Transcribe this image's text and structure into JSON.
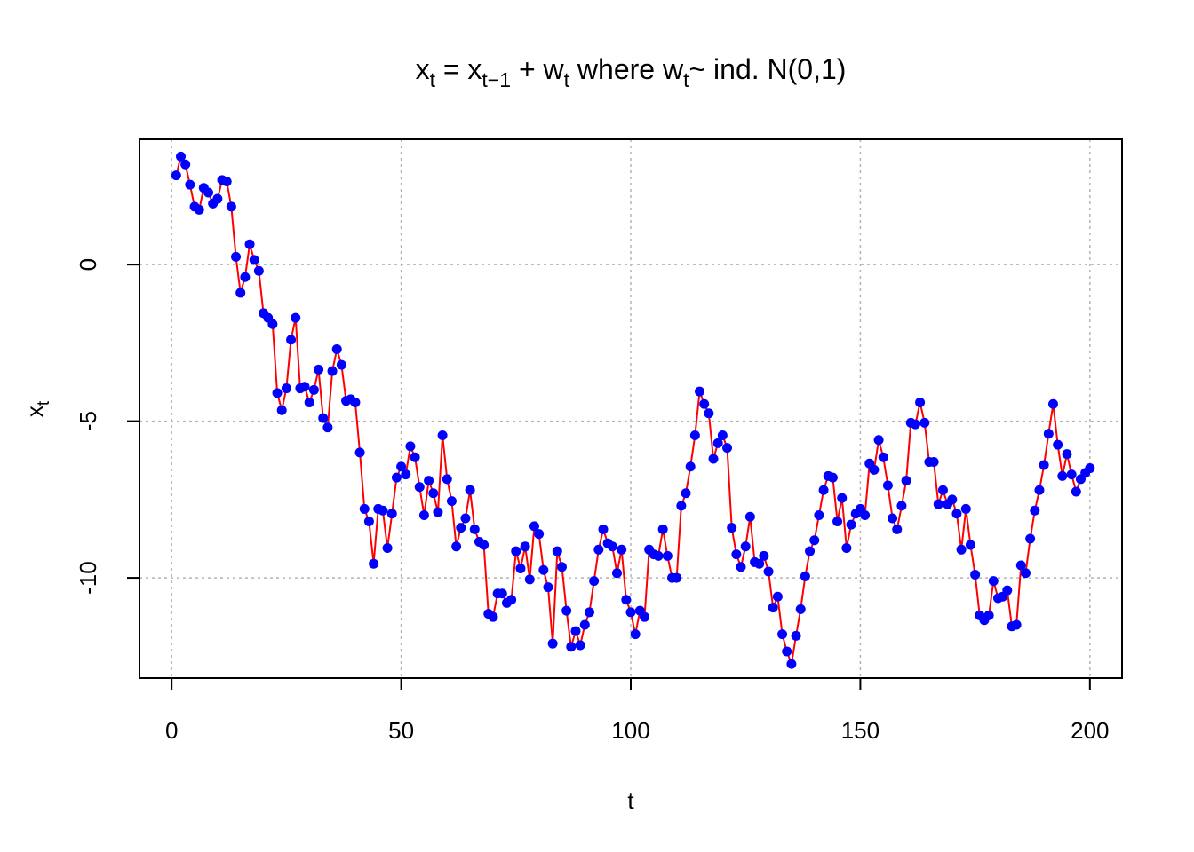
{
  "chart_data": {
    "type": "line",
    "title": {
      "x1": "x",
      "x1_sub": "t",
      "eq": " = ",
      "x2": "x",
      "x2_sub": "t−1",
      "plus": " + ",
      "w1": "w",
      "w1_sub": "t",
      "mid": " where ",
      "w2": "w",
      "w2_sub": "t",
      "tail": "~ ind. N(0,1)"
    },
    "xlabel": "t",
    "ylabel": {
      "main": "x",
      "sub": "t"
    },
    "xlim": [
      -7,
      207
    ],
    "ylim": [
      -13.2,
      4.0
    ],
    "xticks": [
      0,
      50,
      100,
      150,
      200
    ],
    "xtick_labels": [
      "0",
      "50",
      "100",
      "150",
      "200"
    ],
    "yticks": [
      0,
      -5,
      -10
    ],
    "ytick_labels": [
      "0",
      "-5",
      "-10"
    ],
    "grid": true,
    "line_color": "#ff0000",
    "point_color": "#0000ff",
    "series": [
      {
        "x_start": 1,
        "values": [
          2.85,
          3.45,
          3.2,
          2.55,
          1.85,
          1.75,
          2.45,
          2.3,
          1.95,
          2.1,
          2.7,
          2.65,
          1.85,
          0.25,
          -0.9,
          -0.4,
          0.65,
          0.15,
          -0.2,
          -1.55,
          -1.7,
          -1.9,
          -4.1,
          -4.65,
          -3.95,
          -2.4,
          -1.7,
          -3.95,
          -3.9,
          -4.4,
          -4.0,
          -3.35,
          -4.9,
          -5.2,
          -3.4,
          -2.7,
          -3.2,
          -4.35,
          -4.3,
          -4.4,
          -6.0,
          -7.8,
          -8.2,
          -9.55,
          -7.8,
          -7.85,
          -9.05,
          -7.95,
          -6.8,
          -6.45,
          -6.7,
          -5.8,
          -6.15,
          -7.1,
          -8.0,
          -6.9,
          -7.3,
          -7.9,
          -5.45,
          -6.85,
          -7.55,
          -9.0,
          -8.4,
          -8.1,
          -7.2,
          -8.45,
          -8.85,
          -8.95,
          -11.15,
          -11.25,
          -10.5,
          -10.5,
          -10.8,
          -10.7,
          -9.15,
          -9.7,
          -9.0,
          -10.05,
          -8.35,
          -8.6,
          -9.75,
          -10.3,
          -12.1,
          -9.15,
          -9.65,
          -11.05,
          -12.2,
          -11.7,
          -12.15,
          -11.5,
          -11.1,
          -10.1,
          -9.1,
          -8.45,
          -8.9,
          -9.0,
          -9.85,
          -9.1,
          -10.7,
          -11.1,
          -11.8,
          -11.05,
          -11.25,
          -9.1,
          -9.25,
          -9.3,
          -8.45,
          -9.3,
          -10.0,
          -10.0,
          -7.7,
          -7.3,
          -6.45,
          -5.45,
          -4.05,
          -4.45,
          -4.75,
          -6.2,
          -5.7,
          -5.45,
          -5.85,
          -8.4,
          -9.25,
          -9.65,
          -9.0,
          -8.05,
          -9.5,
          -9.55,
          -9.3,
          -9.8,
          -10.95,
          -10.6,
          -11.8,
          -12.35,
          -12.75,
          -11.85,
          -11.0,
          -9.95,
          -9.15,
          -8.8,
          -8.0,
          -7.2,
          -6.75,
          -6.8,
          -8.2,
          -7.45,
          -9.05,
          -8.3,
          -7.95,
          -7.8,
          -8.0,
          -6.35,
          -6.55,
          -5.6,
          -6.15,
          -7.05,
          -8.1,
          -8.45,
          -7.7,
          -6.9,
          -5.05,
          -5.1,
          -4.4,
          -5.05,
          -6.3,
          -6.3,
          -7.65,
          -7.2,
          -7.65,
          -7.5,
          -7.95,
          -9.1,
          -7.8,
          -8.95,
          -9.9,
          -11.2,
          -11.35,
          -11.2,
          -10.1,
          -10.65,
          -10.6,
          -10.4,
          -11.55,
          -11.5,
          -9.6,
          -9.85,
          -8.75,
          -7.85,
          -7.2,
          -6.4,
          -5.4,
          -4.45,
          -5.75,
          -6.75,
          -6.05,
          -6.7,
          -7.25,
          -6.85,
          -6.65,
          -6.5
        ]
      }
    ]
  }
}
